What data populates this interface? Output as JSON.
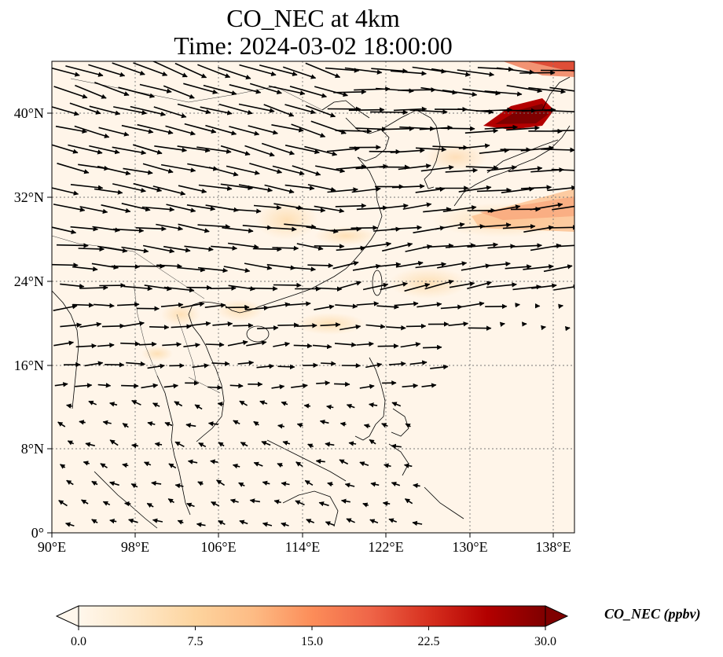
{
  "title": {
    "line1": "CO_NEC at 4km",
    "line2": "Time: 2024-03-02 18:00:00"
  },
  "map": {
    "lon_range": [
      90,
      140
    ],
    "lat_range": [
      0,
      45
    ],
    "x_ticks": [
      "90°E",
      "98°E",
      "106°E",
      "114°E",
      "122°E",
      "130°E",
      "138°E"
    ],
    "y_ticks": [
      "0°",
      "8°N",
      "16°N",
      "24°N",
      "32°N",
      "40°N"
    ],
    "gridlines": true,
    "wind_vectors": true
  },
  "colorbar": {
    "label": "CO_NEC (ppbv)",
    "ticks": [
      "0.0",
      "7.5",
      "15.0",
      "22.5",
      "30.0"
    ],
    "range": [
      0,
      30
    ],
    "extend": "both",
    "colormap": "OrRd",
    "colors": [
      "#fff7ec",
      "#fee8c8",
      "#fdd49e",
      "#fdbb84",
      "#fc8d59",
      "#ef6548",
      "#d7301f",
      "#b30000",
      "#7f0000"
    ]
  }
}
